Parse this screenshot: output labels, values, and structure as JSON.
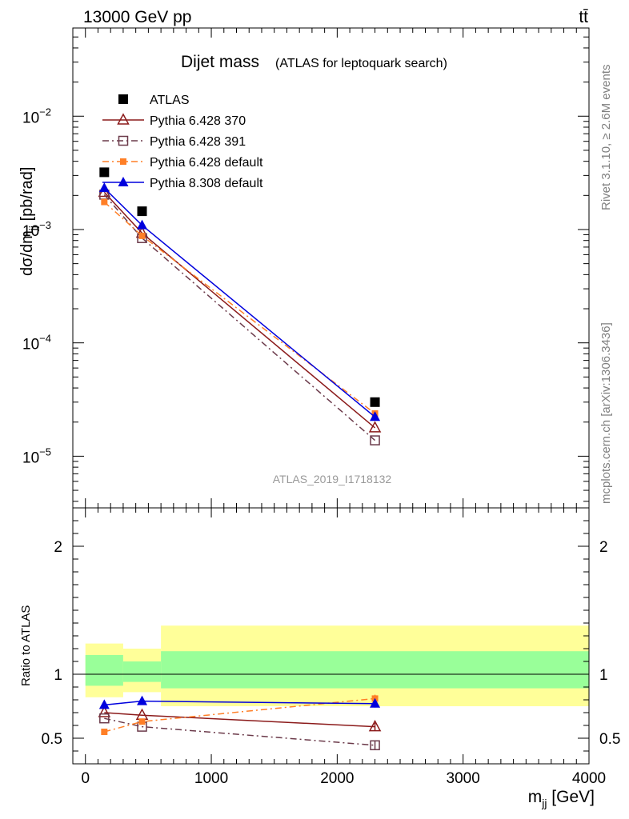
{
  "header": {
    "process": "13000 GeV pp",
    "channel": "tt̄"
  },
  "side_labels": {
    "rivet": "Rivet 3.1.10, ≥ 2.6M events",
    "source": "mcplots.cern.ch [arXiv:1306.3436]"
  },
  "chart_data": [
    {
      "type": "line",
      "panel": "main",
      "title": "Dijet mass",
      "subtitle": "(ATLAS for leptoquark search)",
      "ylabel": "dσ/dm_jj [pb/rad]",
      "yscale": "log",
      "ylim": [
        3.5e-06,
        0.06
      ],
      "xlim": [
        -100,
        4000
      ],
      "yticks": [
        {
          "value": 0.01,
          "base": "10",
          "exp": "−2"
        },
        {
          "value": 0.001,
          "base": "10",
          "exp": "−3"
        },
        {
          "value": 0.0001,
          "base": "10",
          "exp": "−4"
        },
        {
          "value": 1e-05,
          "base": "10",
          "exp": "−5"
        }
      ],
      "watermark": "ATLAS_2019_I1718132",
      "legend_placement": "top-left",
      "series": [
        {
          "name": "ATLAS",
          "color": "#000000",
          "marker": "square",
          "style": "none",
          "x": [
            150,
            450,
            2300
          ],
          "y": [
            0.0032,
            0.00145,
            3e-05
          ]
        },
        {
          "name": "Pythia 6.428 370",
          "color": "#8b1a1a",
          "marker": "triangle-open",
          "style": "solid",
          "x": [
            150,
            450,
            2300
          ],
          "y": [
            0.00213,
            0.00093,
            1.78e-05
          ]
        },
        {
          "name": "Pythia 6.428 391",
          "color": "#6b3a4a",
          "marker": "square-open",
          "style": "dashdot",
          "x": [
            150,
            450,
            2300
          ],
          "y": [
            0.00203,
            0.00084,
            1.38e-05
          ]
        },
        {
          "name": "Pythia 6.428 default",
          "color": "#ff7f27",
          "marker": "square-small",
          "style": "dashdot",
          "x": [
            150,
            450,
            2300
          ],
          "y": [
            0.00175,
            0.00088,
            2.38e-05
          ]
        },
        {
          "name": "Pythia 8.308 default",
          "color": "#0000dd",
          "marker": "triangle",
          "style": "solid",
          "x": [
            150,
            450,
            2300
          ],
          "y": [
            0.00232,
            0.00109,
            2.22e-05
          ]
        }
      ]
    },
    {
      "type": "line",
      "panel": "ratio",
      "ylabel": "Ratio to ATLAS",
      "xlabel": "m_jj [GeV]",
      "ylim": [
        0.3,
        2.3
      ],
      "xlim": [
        -100,
        4000
      ],
      "yticks": [
        "2",
        "1",
        "0.5"
      ],
      "ytick_values": [
        2,
        1,
        0.5
      ],
      "xticks": [
        "0",
        "1000",
        "2000",
        "3000",
        "4000"
      ],
      "xtick_values": [
        0,
        1000,
        2000,
        3000,
        4000
      ],
      "bands": [
        {
          "x0": 0,
          "x1": 300,
          "inner": [
            0.91,
            1.15
          ],
          "outer": [
            0.82,
            1.24
          ]
        },
        {
          "x0": 300,
          "x1": 600,
          "inner": [
            0.94,
            1.1
          ],
          "outer": [
            0.86,
            1.2
          ]
        },
        {
          "x0": 600,
          "x1": 4000,
          "inner": [
            0.89,
            1.18
          ],
          "outer": [
            0.75,
            1.38
          ]
        }
      ],
      "band_colors": {
        "inner": "#99ff99",
        "outer": "#ffff99"
      },
      "series": [
        {
          "name": "Pythia 6.428 370",
          "color": "#8b1a1a",
          "marker": "triangle-open",
          "style": "solid",
          "x": [
            150,
            450,
            2300
          ],
          "y": [
            0.7,
            0.68,
            0.59
          ],
          "err": [
            0,
            0,
            0.03
          ]
        },
        {
          "name": "Pythia 6.428 391",
          "color": "#6b3a4a",
          "marker": "square-open",
          "style": "dashdot",
          "x": [
            150,
            450,
            2300
          ],
          "y": [
            0.655,
            0.59,
            0.445
          ],
          "err": [
            0,
            0,
            0.03
          ]
        },
        {
          "name": "Pythia 6.428 default",
          "color": "#ff7f27",
          "marker": "square-small",
          "style": "dashdot",
          "x": [
            150,
            450,
            2300
          ],
          "y": [
            0.55,
            0.63,
            0.81
          ],
          "err": [
            0,
            0.01,
            0.03
          ]
        },
        {
          "name": "Pythia 8.308 default",
          "color": "#0000dd",
          "marker": "triangle",
          "style": "solid",
          "x": [
            150,
            450,
            2300
          ],
          "y": [
            0.76,
            0.79,
            0.77
          ],
          "err": [
            0,
            0.015,
            0.03
          ]
        }
      ]
    }
  ]
}
